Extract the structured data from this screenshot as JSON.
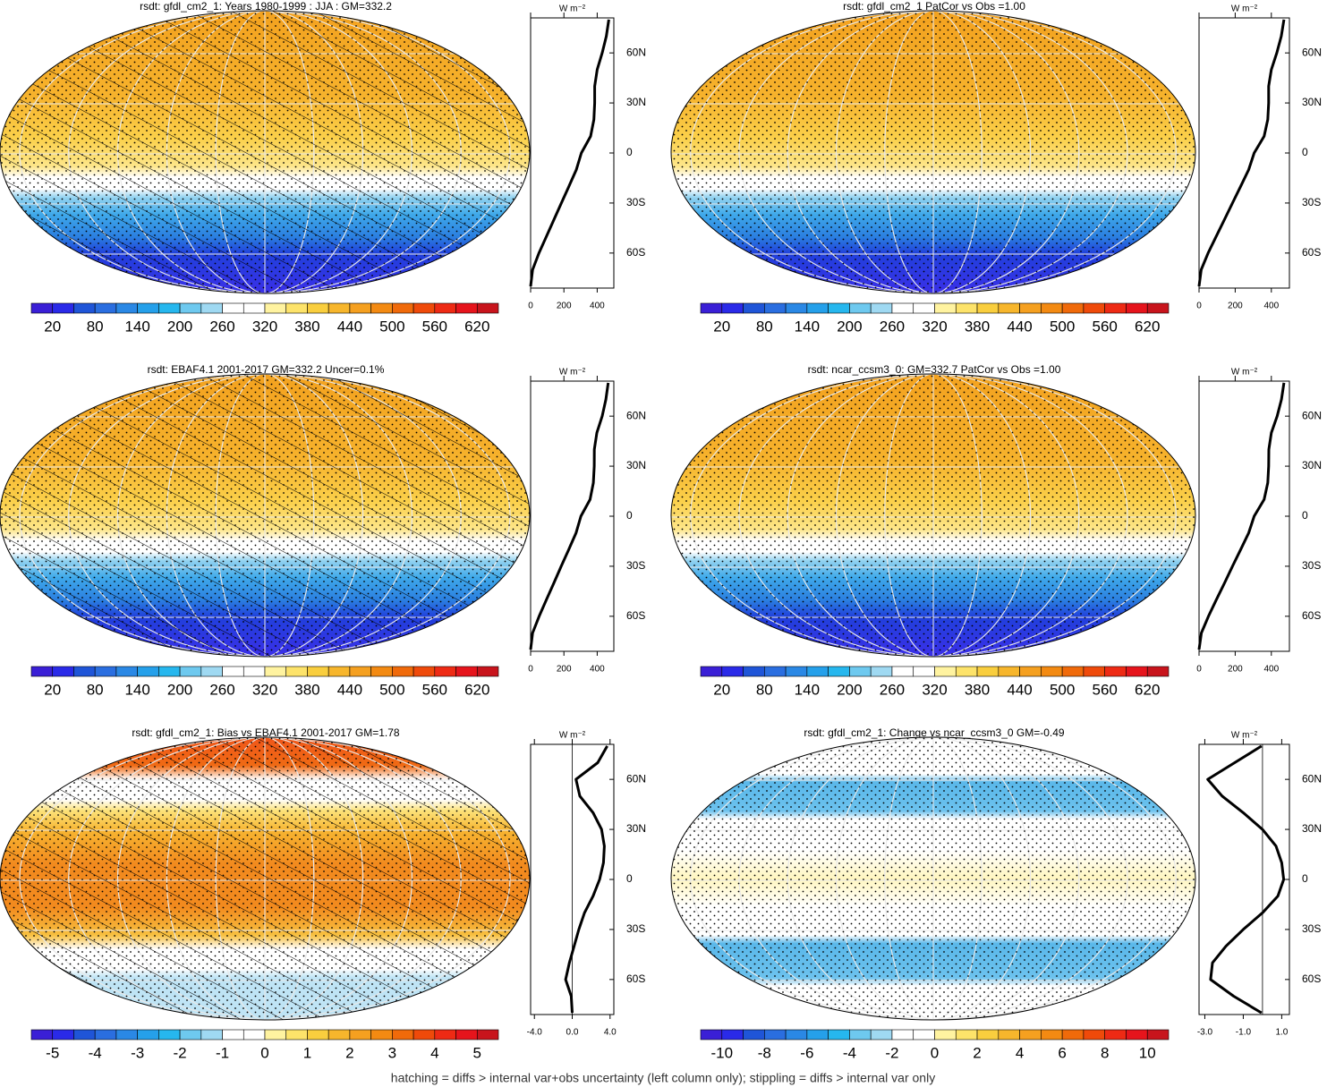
{
  "colorbar_colors": [
    "#3a1fd6",
    "#2a2ae8",
    "#1f55d8",
    "#2a6ee0",
    "#2a88e5",
    "#25a0ea",
    "#26b7ee",
    "#6ec9ef",
    "#9fd9f2",
    "#ffffff",
    "#ffffff",
    "#fff3a0",
    "#fde36a",
    "#f9ce3e",
    "#f7b62c",
    "#f5a020",
    "#f38a12",
    "#f06a0a",
    "#ef4a0a",
    "#ee2a14",
    "#e6141c",
    "#c8141c"
  ],
  "profile": {
    "units": "W m⁻²",
    "ylim": [
      -81,
      81
    ],
    "yticks": [
      {
        "value": 60,
        "label": "60N"
      },
      {
        "value": 30,
        "label": "30N"
      },
      0,
      {
        "value": -30,
        "label": "30S"
      },
      {
        "value": -60,
        "label": "60S"
      }
    ],
    "lats": [
      80,
      70,
      60,
      50,
      40,
      30,
      20,
      10,
      0,
      -10,
      -20,
      -30,
      -40,
      -50,
      -60,
      -70,
      -80
    ]
  },
  "panels": [
    {
      "title": "rsdt: gfdl_cm2_1: Years 1980-1999 : JJA : GM=332.2",
      "colorbar_labels": [
        20,
        80,
        140,
        200,
        260,
        320,
        380,
        440,
        500,
        560,
        620
      ],
      "xlim": [
        0,
        500
      ],
      "xticks": [
        0,
        200,
        400
      ],
      "values": [
        470,
        455,
        430,
        400,
        385,
        385,
        380,
        360,
        305,
        275,
        230,
        185,
        140,
        95,
        50,
        12,
        0
      ]
    },
    {
      "title": "rsdt: gfdl_cm2_1 PatCor vs Obs =1.00",
      "colorbar_labels": [
        20,
        80,
        140,
        200,
        260,
        320,
        380,
        440,
        500,
        560,
        620
      ],
      "xlim": [
        0,
        500
      ],
      "xticks": [
        0,
        200,
        400
      ],
      "values": [
        470,
        455,
        430,
        400,
        385,
        385,
        380,
        360,
        305,
        275,
        230,
        185,
        140,
        95,
        50,
        12,
        0
      ]
    },
    {
      "title": "rsdt: EBAF4.1 2001-2017 GM=332.2 Uncer=0.1%",
      "colorbar_labels": [
        20,
        80,
        140,
        200,
        260,
        320,
        380,
        440,
        500,
        560,
        620
      ],
      "xlim": [
        0,
        500
      ],
      "xticks": [
        0,
        200,
        400
      ],
      "values": [
        466,
        452,
        430,
        398,
        383,
        382,
        377,
        357,
        302,
        273,
        229,
        184,
        140,
        95,
        51,
        12,
        0
      ]
    },
    {
      "title": "rsdt: ncar_ccsm3_0: GM=332.7 PatCor vs Obs =1.00",
      "colorbar_labels": [
        20,
        80,
        140,
        200,
        260,
        320,
        380,
        440,
        500,
        560,
        620
      ],
      "xlim": [
        0,
        500
      ],
      "xticks": [
        0,
        200,
        400
      ],
      "values": [
        470,
        456,
        432,
        400,
        386,
        385,
        380,
        360,
        305,
        275,
        230,
        185,
        141,
        96,
        52,
        13,
        0
      ]
    },
    {
      "title": "rsdt: gfdl_cm2_1: Bias vs EBAF4.1 2001-2017 GM=1.78",
      "colorbar_labels": [
        -5,
        -4,
        -3,
        -2,
        -1,
        0,
        1,
        2,
        3,
        4,
        5
      ],
      "xlim": [
        -4.4,
        4.4
      ],
      "xticks": [
        {
          "value": -4,
          "label": "-4.0"
        },
        {
          "value": 0,
          "label": "0.0"
        },
        {
          "value": 4,
          "label": "4.0"
        }
      ],
      "values": [
        3.7,
        2.7,
        0.4,
        0.8,
        2.2,
        3.1,
        3.4,
        3.3,
        2.9,
        2.2,
        1.3,
        0.7,
        0.2,
        -0.3,
        -0.7,
        -0.1,
        0
      ]
    },
    {
      "title": "rsdt: gfdl_cm2_1: Change vs ncar_ccsm3_0 GM=-0.49",
      "colorbar_labels": [
        -10,
        -8,
        -6,
        -4,
        -2,
        0,
        2,
        4,
        6,
        8,
        10
      ],
      "xlim": [
        -3.3,
        1.4
      ],
      "xticks": [
        {
          "value": -3,
          "label": "-3.0"
        },
        {
          "value": -1,
          "label": "-1.0"
        },
        {
          "value": 1,
          "label": "1.0"
        }
      ],
      "values": [
        -0.05,
        -1.45,
        -2.85,
        -2.1,
        -1.0,
        0,
        0.7,
        1.0,
        1.1,
        0.8,
        0,
        -1.0,
        -1.9,
        -2.6,
        -2.7,
        -1.5,
        -0.05
      ]
    }
  ],
  "footer": "hatching = diffs > internal var+obs uncertainty (left column only); stippling = diffs > internal var only"
}
